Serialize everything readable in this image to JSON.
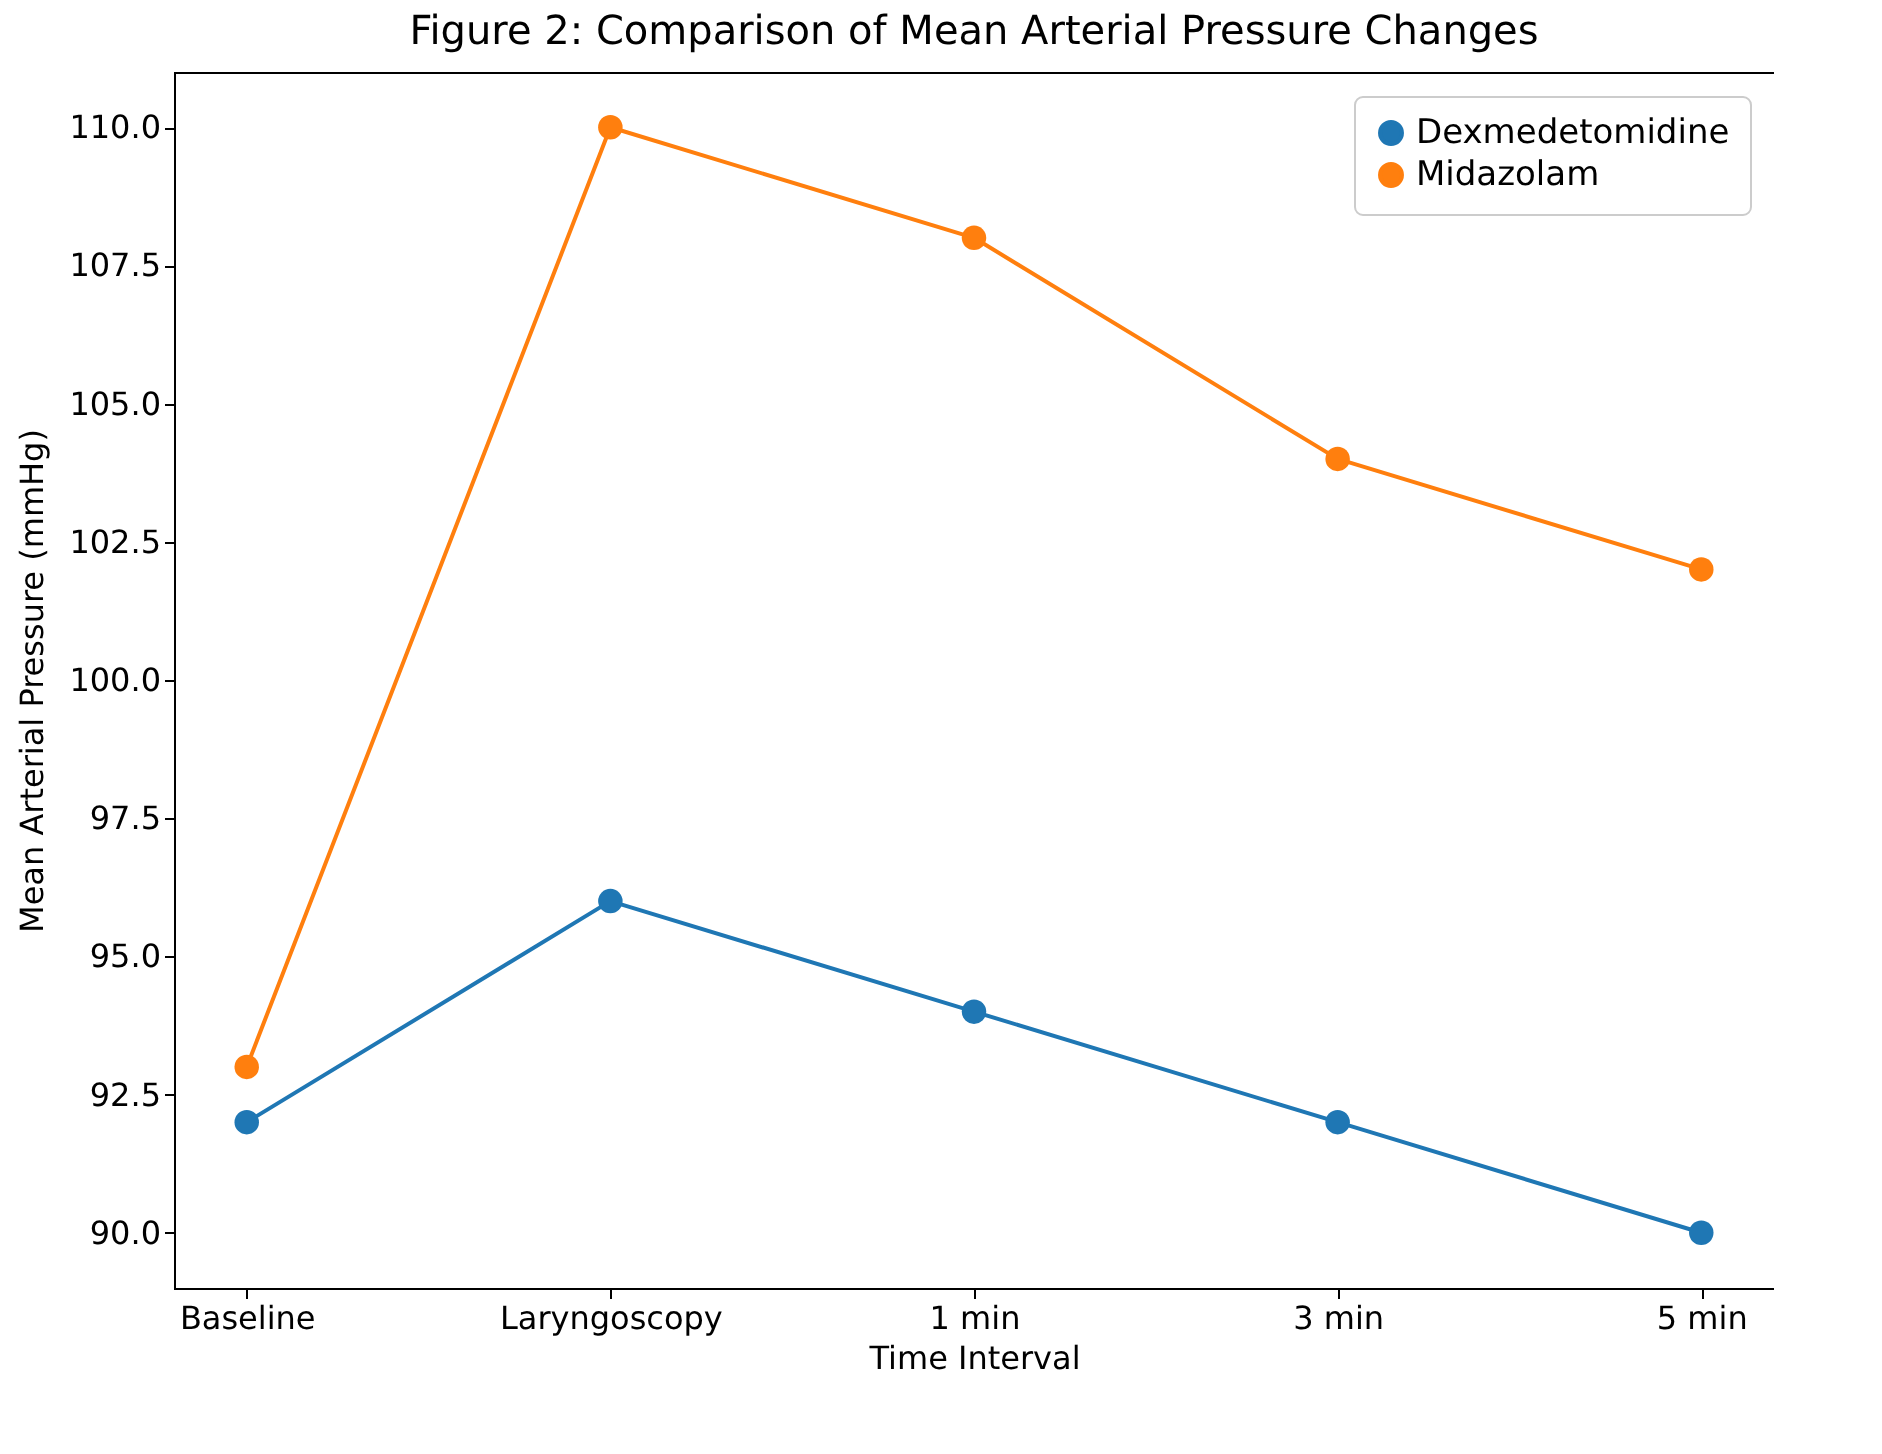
{
  "chart_data": {
    "type": "line",
    "title": "Figure 2: Comparison of Mean Arterial Pressure Changes",
    "xlabel": "Time Interval",
    "ylabel": "Mean Arterial Pressure (mmHg)",
    "categories": [
      "Baseline",
      "Laryngoscopy",
      "1 min",
      "3 min",
      "5 min"
    ],
    "series": [
      {
        "name": "Dexmedetomidine",
        "color": "#1f77b4",
        "values": [
          92,
          96,
          94,
          92,
          90
        ]
      },
      {
        "name": "Midazolam",
        "color": "#ff7f0e",
        "values": [
          93,
          110,
          108,
          104,
          102
        ]
      }
    ],
    "ylim": [
      89,
      111
    ],
    "yticks": [
      {
        "value": 90,
        "label": "90.0"
      },
      {
        "value": 92.5,
        "label": "92.5"
      },
      {
        "value": 95,
        "label": "95.0"
      },
      {
        "value": 97.5,
        "label": "97.5"
      },
      {
        "value": 100,
        "label": "100.0"
      },
      {
        "value": 102.5,
        "label": "102.5"
      },
      {
        "value": 105,
        "label": "105.0"
      },
      {
        "value": 107.5,
        "label": "107.5"
      },
      {
        "value": 110,
        "label": "110.0"
      }
    ],
    "grid": false,
    "legend": "top right",
    "marker": "circle",
    "line_style": "solid"
  }
}
